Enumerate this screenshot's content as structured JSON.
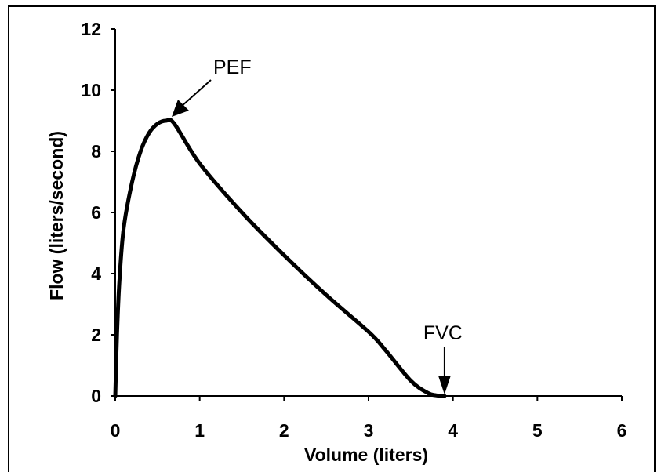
{
  "chart_data": {
    "type": "line",
    "xlabel": "Volume (liters)",
    "ylabel": "Flow (liters/second)",
    "xlim": [
      0,
      6
    ],
    "ylim": [
      0,
      12
    ],
    "xticks": [
      "0",
      "1",
      "2",
      "3",
      "4",
      "5",
      "6"
    ],
    "yticks": [
      "0",
      "2",
      "4",
      "6",
      "8",
      "10",
      "12"
    ],
    "grid": false,
    "series": [
      {
        "x": [
          0.0,
          0.02,
          0.05,
          0.1,
          0.2,
          0.3,
          0.4,
          0.5,
          0.6,
          0.7,
          1.0,
          1.5,
          2.0,
          2.5,
          3.0,
          3.2,
          3.5,
          3.7,
          3.8,
          3.9
        ],
        "y": [
          0.0,
          2.0,
          3.8,
          5.5,
          7.0,
          8.0,
          8.6,
          8.9,
          9.0,
          8.9,
          7.6,
          6.0,
          4.6,
          3.3,
          2.1,
          1.5,
          0.5,
          0.1,
          0.02,
          0.0
        ]
      }
    ],
    "annotations": [
      {
        "text": "PEF",
        "x": 0.65,
        "y": 9.0
      },
      {
        "text": "FVC",
        "x": 3.9,
        "y": 0.0
      }
    ]
  }
}
